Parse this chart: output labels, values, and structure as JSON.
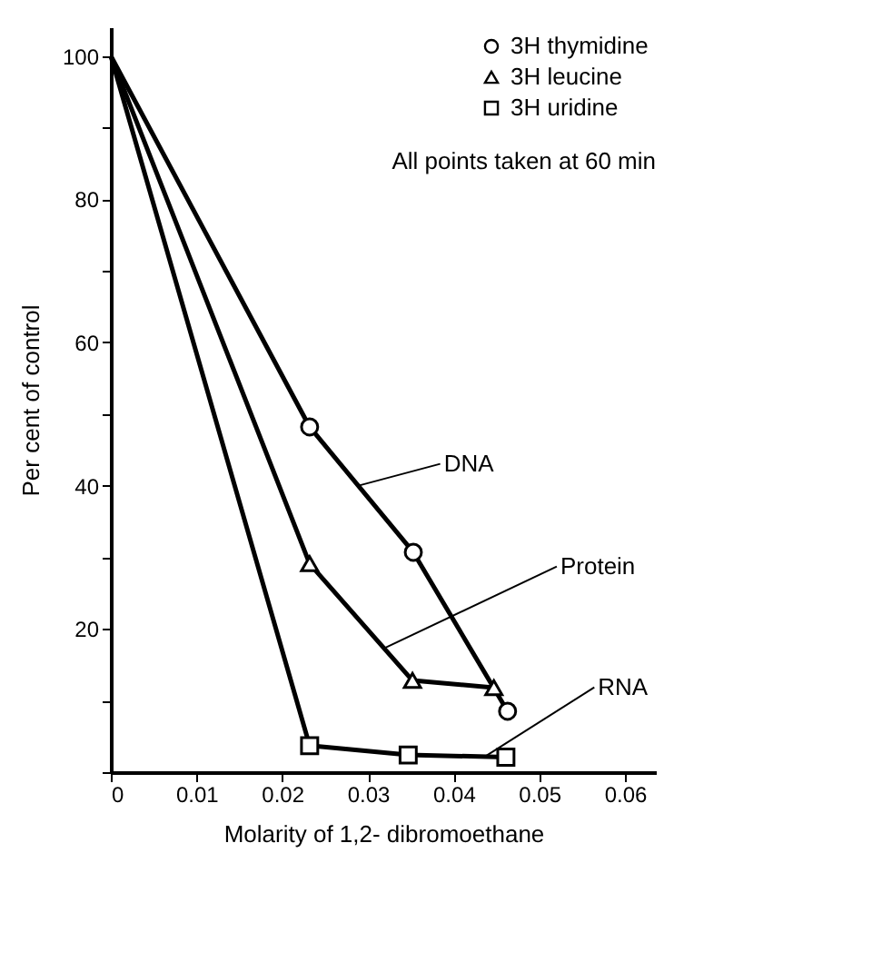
{
  "chart_data": {
    "type": "line",
    "xlabel": "Molarity of 1,2- dibromoethane",
    "ylabel": "Per cent of control",
    "xlim": [
      0,
      0.0636
    ],
    "ylim": [
      0,
      104
    ],
    "xticks": [
      0,
      0.01,
      0.02,
      0.03,
      0.04,
      0.05,
      0.06
    ],
    "yticks": [
      {
        "value": 0,
        "label": null
      },
      {
        "value": 10,
        "label": null
      },
      20,
      {
        "value": 30,
        "label": null
      },
      40,
      {
        "value": 50,
        "label": null
      },
      60,
      {
        "value": 70,
        "label": null
      },
      80,
      {
        "value": 90,
        "label": null
      },
      100
    ],
    "series": [
      {
        "name": "3H thymidine",
        "color": "#000000",
        "marker": "circle",
        "x": [
          0,
          0.0232,
          0.0353,
          0.0463
        ],
        "values": [
          100,
          48.2,
          30.7,
          8.5
        ]
      },
      {
        "name": "3H leucine",
        "color": "#000000",
        "marker": "triangle",
        "x": [
          0,
          0.0232,
          0.0352,
          0.0447
        ],
        "values": [
          100,
          29.1,
          12.8,
          11.8
        ]
      },
      {
        "name": "3H uridine",
        "color": "#000000",
        "marker": "square",
        "x": [
          0,
          0.0232,
          0.0347,
          0.0461
        ],
        "values": [
          100,
          3.7,
          2.4,
          2.1
        ]
      }
    ],
    "annotations": [
      "All points taken at 60 min",
      {
        "text": "DNA",
        "x": 0.0289,
        "y": 40
      },
      {
        "text": "Protein",
        "x": 0.0319,
        "y": 17.3
      },
      {
        "text": "RNA",
        "x": 0.0437,
        "y": 2.2
      }
    ],
    "legend": "top right",
    "grid": false,
    "line_style": "solid"
  }
}
